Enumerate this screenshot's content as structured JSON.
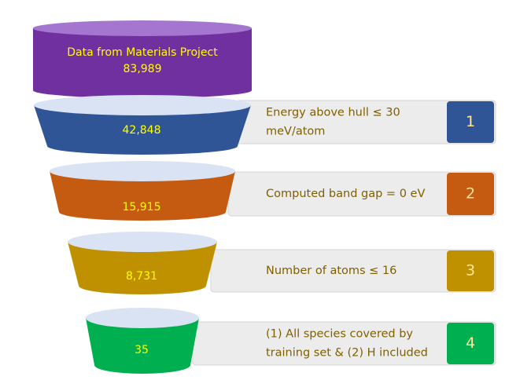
{
  "source": {
    "label": "Data from Materials Project",
    "count": "83,989"
  },
  "stages": [
    {
      "count": "42,848",
      "filter": [
        "Energy above hull ≤ 30",
        "meV/atom"
      ],
      "step": "1"
    },
    {
      "count": "15,915",
      "filter": [
        "Computed band gap = 0 eV"
      ],
      "step": "2"
    },
    {
      "count": "8,731",
      "filter": [
        "Number of atoms ≤ 16"
      ],
      "step": "3"
    },
    {
      "count": "35",
      "filter": [
        "(1) All species covered by",
        "training set & (2) H included"
      ],
      "step": "4"
    }
  ]
}
